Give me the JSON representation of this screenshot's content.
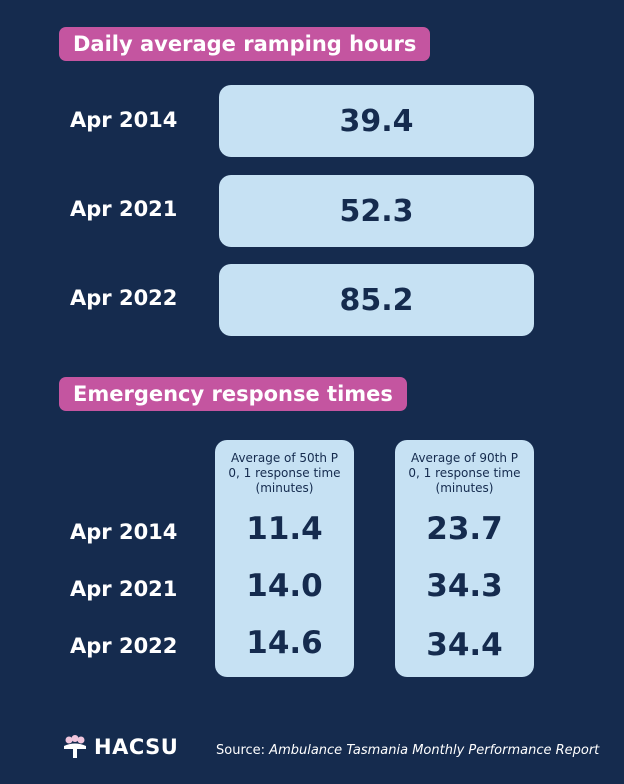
{
  "ramping": {
    "title": "Daily average ramping hours",
    "rows": [
      {
        "label": "Apr 2014",
        "value": "39.4"
      },
      {
        "label": "Apr 2021",
        "value": "52.3"
      },
      {
        "label": "Apr 2022",
        "value": "85.2"
      }
    ]
  },
  "response": {
    "title": "Emergency response times",
    "col50_header": "Average of 50th P 0, 1 response time (minutes)",
    "col90_header": "Average of 90th P 0, 1 response time (minutes)",
    "rows": [
      {
        "label": "Apr 2014",
        "p50": "11.4",
        "p90": "23.7"
      },
      {
        "label": "Apr 2021",
        "p50": "14.0",
        "p90": "34.3"
      },
      {
        "label": "Apr 2022",
        "p50": "14.6",
        "p90": "34.4"
      }
    ]
  },
  "footer": {
    "logo_text": "HACSU",
    "logo_icon": "hacsu-logo-icon",
    "source_prefix": "Source: ",
    "source_name": "Ambulance Tasmania Monthly Performance Report"
  },
  "colors": {
    "background": "#152b4e",
    "pill": "#c455a0",
    "box": "#c6e1f3"
  }
}
